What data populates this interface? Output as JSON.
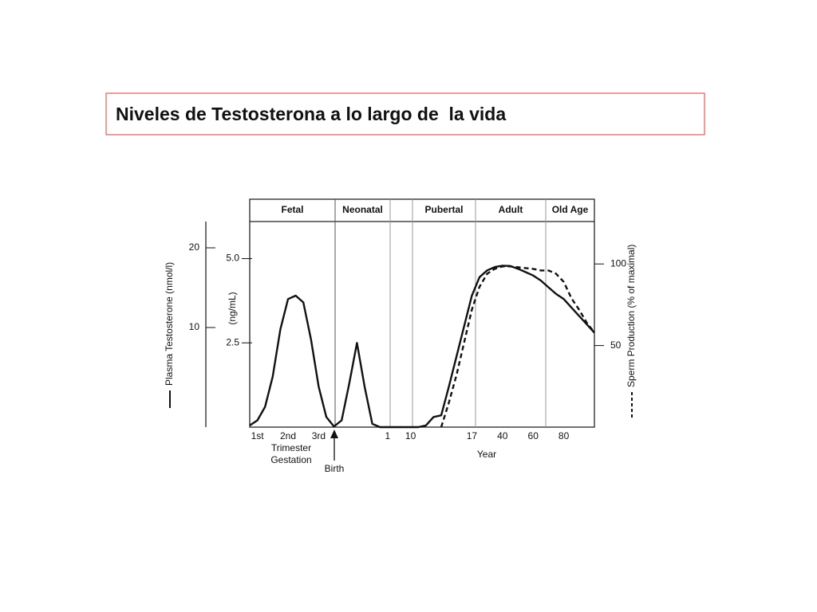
{
  "title": "Niveles de Testosterona a lo largo de  la vida",
  "chart_data": {
    "type": "line",
    "phases": [
      "Fetal",
      "Neonatal",
      "Pubertal",
      "Adult",
      "Old Age"
    ],
    "categories": [
      null,
      "1st",
      null,
      null,
      null,
      "2nd",
      null,
      null,
      null,
      "3rd",
      null,
      null,
      null,
      null,
      null,
      null,
      null,
      null,
      "1",
      null,
      null,
      "10",
      null,
      null,
      null,
      null,
      null,
      null,
      null,
      "17",
      null,
      null,
      null,
      "40",
      null,
      null,
      null,
      "60",
      null,
      null,
      null,
      "80",
      null,
      null,
      null,
      null
    ],
    "x_notes": [
      "Trimester",
      "Gestation",
      "Birth"
    ],
    "xlabel": "Year",
    "ylabel": "(ng/mL)",
    "ylim": [
      0,
      6.1
    ],
    "yticks": [
      2.5,
      {
        "value": 5,
        "label": "5.0"
      }
    ],
    "y3lim": [
      -2.5,
      23.3
    ],
    "y3ticks": [
      10,
      20
    ],
    "y2lim": [
      0,
      126
    ],
    "y2ticks": [
      50,
      100
    ],
    "series": [
      {
        "name": "Plasma Testosterone (nmol/l)",
        "color": "#111111",
        "dash": false,
        "axis": "y",
        "values": [
          0.05,
          0.2,
          0.6,
          1.5,
          2.9,
          3.8,
          3.9,
          3.7,
          2.6,
          1.2,
          0.3,
          0.02,
          0.2,
          1.3,
          2.5,
          1.2,
          0.1,
          0,
          0,
          0,
          0,
          0,
          0,
          0.05,
          0.3,
          0.35,
          1.2,
          2.1,
          3.0,
          3.9,
          4.45,
          4.65,
          4.75,
          4.79,
          4.78,
          4.7,
          4.6,
          4.5,
          4.35,
          4.15,
          3.95,
          3.8,
          3.55,
          3.3,
          3.05,
          2.8
        ]
      },
      {
        "name": "Sperm Production (% of maximal)",
        "color": "#111111",
        "dash": true,
        "axis": "y2",
        "values": [
          null,
          null,
          null,
          null,
          null,
          null,
          null,
          null,
          null,
          null,
          null,
          null,
          null,
          null,
          null,
          null,
          null,
          null,
          null,
          null,
          null,
          null,
          null,
          null,
          null,
          0,
          15,
          32,
          52,
          72,
          86,
          94,
          97,
          98.5,
          98.5,
          98,
          97.5,
          97,
          96,
          96,
          94,
          89,
          79,
          72,
          64,
          58
        ]
      }
    ]
  }
}
